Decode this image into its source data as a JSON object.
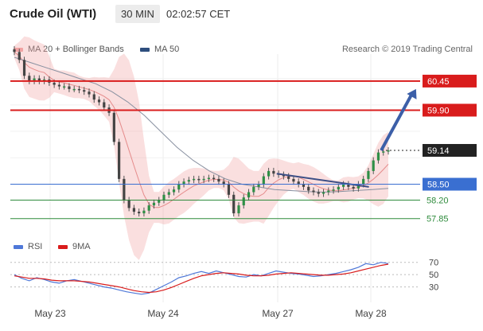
{
  "header": {
    "title": "Crude Oil (WTI)",
    "timeframe": "30 MIN",
    "time": "02:02:57 CET"
  },
  "legend": {
    "bollinger_label": "MA 20 + Bollinger Bands",
    "ma50_label": "MA 50",
    "credit": "Research © 2019 Trading Central"
  },
  "rsi_legend": {
    "rsi_label": "RSI",
    "ma9_label": "9MA"
  },
  "colors": {
    "resistance": "#d91c1c",
    "pivot": "#3a6fd1",
    "support": "#2e8b3c",
    "current": "#222222",
    "bollinger": "#f2a2a2",
    "ma50": "#2e4e7e",
    "rsi": "#4f78d8",
    "ma9": "#d91c1c"
  },
  "chart_data": [
    {
      "type": "candlestick",
      "title": "Crude Oil (WTI)",
      "x_ticks": [
        "May 23",
        "May 24",
        "May 27",
        "May 28"
      ],
      "ylim": [
        57.5,
        60.9
      ],
      "grid": true,
      "price_levels": [
        {
          "label": "60.45",
          "value": 60.45,
          "role": "resistance"
        },
        {
          "label": "59.90",
          "value": 59.9,
          "role": "resistance"
        },
        {
          "label": "59.14",
          "value": 59.14,
          "role": "current"
        },
        {
          "label": "58.50",
          "value": 58.5,
          "role": "pivot"
        },
        {
          "label": "58.20",
          "value": 58.2,
          "role": "support"
        },
        {
          "label": "57.85",
          "value": 57.85,
          "role": "support"
        }
      ],
      "close_series": [
        61.0,
        60.85,
        60.55,
        60.45,
        60.5,
        60.45,
        60.48,
        60.42,
        60.38,
        60.35,
        60.35,
        60.3,
        60.3,
        60.28,
        60.25,
        60.2,
        60.1,
        60.05,
        59.95,
        59.85,
        59.3,
        58.6,
        58.2,
        58.05,
        57.98,
        57.95,
        58.0,
        58.1,
        58.15,
        58.2,
        58.3,
        58.35,
        58.4,
        58.5,
        58.55,
        58.58,
        58.6,
        58.58,
        58.6,
        58.62,
        58.6,
        58.55,
        58.5,
        58.3,
        57.95,
        58.1,
        58.25,
        58.35,
        58.45,
        58.5,
        58.65,
        58.75,
        58.7,
        58.68,
        58.65,
        58.6,
        58.55,
        58.5,
        58.45,
        58.38,
        58.35,
        58.32,
        58.35,
        58.38,
        58.4,
        58.45,
        58.5,
        58.45,
        58.42,
        58.5,
        58.6,
        58.75,
        58.95,
        59.1,
        59.12,
        59.14
      ],
      "overlays": [
        {
          "name": "MA 20 + Bollinger Bands",
          "type": "band"
        },
        {
          "name": "MA 50",
          "type": "line",
          "values": [
            60.9,
            60.8,
            60.7,
            60.6,
            60.5,
            60.4,
            60.25,
            60.05,
            59.8,
            59.5,
            59.2,
            58.95,
            58.75,
            58.6,
            58.5,
            58.45,
            58.4,
            58.38,
            58.36,
            58.35,
            58.36,
            58.38,
            58.4,
            58.42
          ]
        }
      ],
      "trendlines": [
        {
          "from": [
            0.65,
            58.7
          ],
          "to": [
            0.875,
            58.45
          ]
        }
      ],
      "projection_arrow": {
        "from": [
          0.905,
          59.14
        ],
        "to": [
          0.99,
          60.3
        ]
      }
    },
    {
      "type": "line",
      "title": "RSI",
      "yticks": [
        70,
        50,
        30
      ],
      "series": [
        {
          "name": "RSI",
          "values": [
            50,
            44,
            40,
            45,
            42,
            38,
            36,
            40,
            42,
            39,
            36,
            33,
            30,
            28,
            25,
            22,
            20,
            18,
            20,
            26,
            32,
            38,
            45,
            48,
            52,
            55,
            52,
            56,
            53,
            50,
            47,
            46,
            50,
            48,
            52,
            56,
            54,
            52,
            51,
            49,
            47,
            48,
            50,
            52,
            55,
            58,
            62,
            68,
            66,
            70,
            68
          ]
        },
        {
          "name": "9MA",
          "values": [
            48,
            46,
            44,
            44,
            43,
            41,
            40,
            40,
            40,
            39,
            38,
            36,
            34,
            32,
            30,
            27,
            24,
            22,
            21,
            22,
            25,
            29,
            34,
            39,
            44,
            48,
            50,
            52,
            53,
            52,
            51,
            49,
            48,
            48,
            49,
            51,
            52,
            53,
            52,
            51,
            50,
            49,
            49,
            50,
            51,
            53,
            56,
            59,
            62,
            65,
            67
          ]
        }
      ]
    }
  ]
}
